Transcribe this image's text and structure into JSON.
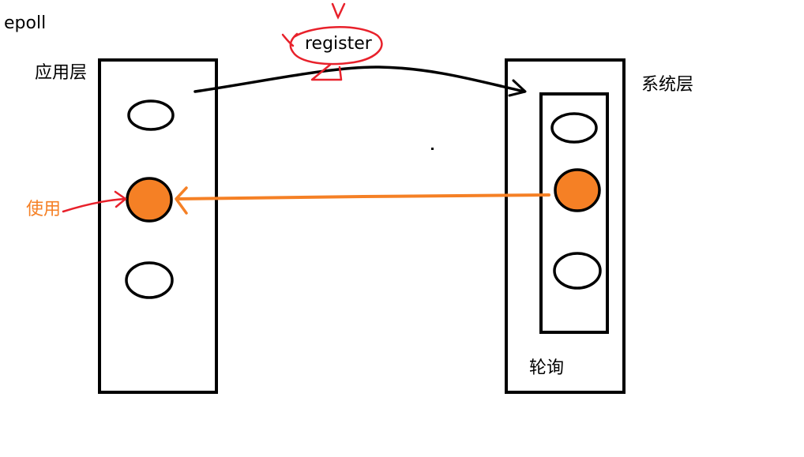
{
  "title": "epoll",
  "labels": {
    "app_layer": "应用层",
    "system_layer": "系统层",
    "register": "register",
    "use": "使用",
    "polling": "轮询"
  },
  "colors": {
    "stroke": "#000000",
    "orange": "#f58025",
    "red": "#e8212b",
    "background": "#ffffff"
  }
}
